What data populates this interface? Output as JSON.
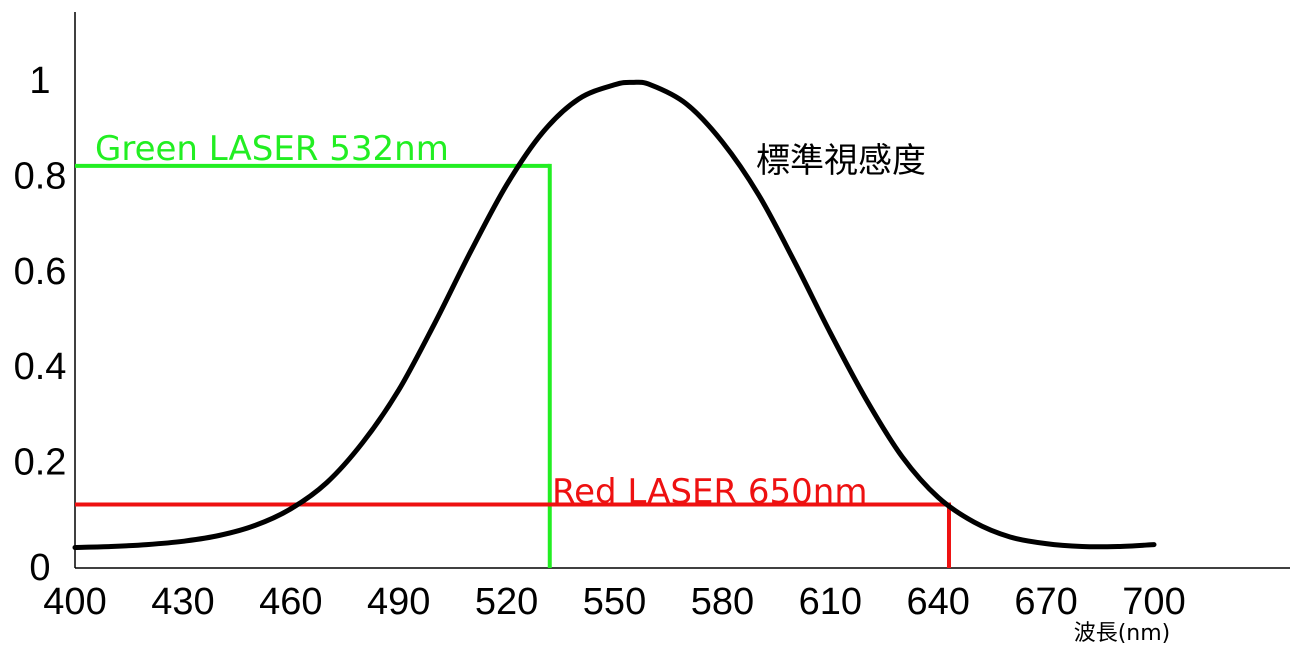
{
  "chart_data": {
    "type": "line",
    "xlabel": "波長(nm)",
    "ylabel": "",
    "xlim": [
      400,
      738
    ],
    "ylim": [
      0,
      1.12
    ],
    "x_ticks": [
      400,
      430,
      460,
      490,
      520,
      550,
      580,
      610,
      640,
      670,
      700
    ],
    "y_ticks": [
      0,
      0.2,
      0.4,
      0.6,
      0.8,
      1
    ],
    "y_tick_labels": [
      "0",
      "0.2",
      "0.4",
      "0.6",
      "0.8",
      "1"
    ],
    "grid": false,
    "series": [
      {
        "name": "標準視感度",
        "color": "#000000",
        "x": [
          400,
          410,
          420,
          430,
          440,
          450,
          460,
          470,
          480,
          490,
          500,
          510,
          520,
          530,
          540,
          550,
          555,
          560,
          570,
          580,
          590,
          600,
          610,
          620,
          630,
          640,
          650,
          660,
          670,
          680,
          690,
          700
        ],
        "y": [
          0.02,
          0.022,
          0.026,
          0.033,
          0.045,
          0.066,
          0.101,
          0.156,
          0.24,
          0.35,
          0.49,
          0.64,
          0.78,
          0.89,
          0.96,
          0.99,
          0.995,
          0.99,
          0.95,
          0.87,
          0.76,
          0.62,
          0.47,
          0.33,
          0.21,
          0.125,
          0.073,
          0.042,
          0.028,
          0.022,
          0.022,
          0.026
        ]
      }
    ],
    "annotations": [
      {
        "label": "Green LASER 532nm",
        "x": 532,
        "y": 0.82,
        "color": "#22ee22"
      },
      {
        "label": "Red LASER 650nm",
        "x": 643,
        "y": 0.11,
        "color": "#ee1111"
      }
    ]
  }
}
